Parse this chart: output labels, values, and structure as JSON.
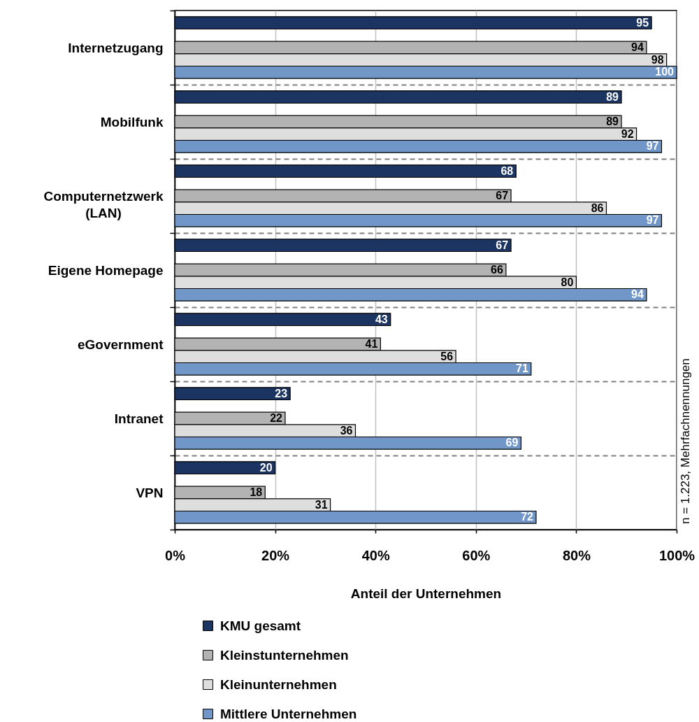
{
  "chart_data": {
    "type": "bar",
    "orientation": "horizontal",
    "xlabel": "Anteil der Unternehmen",
    "annotations": [
      "n = 1.223, Mehrfachnennungen"
    ],
    "categories": [
      "Internetzugang",
      "Mobilfunk",
      "Computernetzwerk (LAN)",
      "Eigene Homepage",
      "eGovernment",
      "Intranet",
      "VPN"
    ],
    "series": [
      {
        "name": "KMU gesamt",
        "color": "#1c3461",
        "values": [
          95,
          89,
          68,
          67,
          43,
          23,
          20
        ]
      },
      {
        "name": "Kleinstunternehmen",
        "color": "#b3b3b3",
        "values": [
          94,
          89,
          67,
          66,
          41,
          22,
          18
        ]
      },
      {
        "name": "Kleinunternehmen",
        "color": "#dedede",
        "values": [
          98,
          92,
          86,
          80,
          56,
          36,
          31
        ]
      },
      {
        "name": "Mittlere Unternehmen",
        "color": "#7097c8",
        "values": [
          100,
          97,
          97,
          94,
          71,
          69,
          72
        ]
      }
    ],
    "xlim": [
      0,
      100
    ],
    "xticks": [
      {
        "value": 0,
        "label": "0%"
      },
      {
        "value": 20,
        "label": "20%"
      },
      {
        "value": 40,
        "label": "40%"
      },
      {
        "value": 60,
        "label": "60%"
      },
      {
        "value": 80,
        "label": "80%"
      },
      {
        "value": 100,
        "label": "100%"
      }
    ],
    "grid": true,
    "legend": "bottom",
    "data_labels": true
  }
}
